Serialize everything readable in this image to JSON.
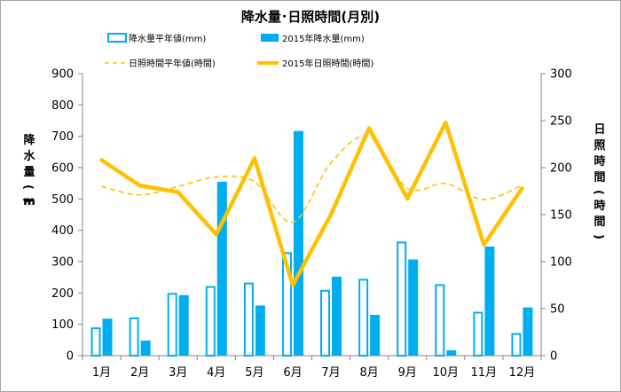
{
  "chart_data": {
    "type": "bar",
    "title": "降水量･日照時間(月別)",
    "categories": [
      "1月",
      "2月",
      "3月",
      "4月",
      "5月",
      "6月",
      "7月",
      "8月",
      "9月",
      "10月",
      "11月",
      "12月"
    ],
    "y_left": {
      "label": "降水量(mm)",
      "lim": [
        0,
        900
      ],
      "ticks": [
        0,
        100,
        200,
        300,
        400,
        500,
        600,
        700,
        800,
        900
      ]
    },
    "y_right": {
      "label": "日照時間(時間)",
      "lim": [
        0,
        300
      ],
      "ticks": [
        0,
        50,
        100,
        150,
        200,
        250,
        300
      ]
    },
    "series": [
      {
        "name": "降水量平年値(mm)",
        "kind": "bar-outline",
        "axis": "left",
        "color": "#00aeef",
        "values": [
          90,
          122,
          200,
          222,
          233,
          330,
          210,
          245,
          364,
          228,
          140,
          72
        ]
      },
      {
        "name": "2015年降水量(mm)",
        "kind": "bar",
        "axis": "left",
        "color": "#00aeef",
        "values": [
          118,
          48,
          193,
          555,
          160,
          717,
          252,
          130,
          307,
          17,
          348,
          154
        ]
      },
      {
        "name": "日照時間平年値(時間)",
        "kind": "dashed-line",
        "axis": "right",
        "color": "#ffc000",
        "values": [
          180,
          171,
          180,
          190,
          185,
          142,
          205,
          233,
          178,
          183,
          166,
          181
        ]
      },
      {
        "name": "2015年日照時間(時間)",
        "kind": "line",
        "axis": "right",
        "color": "#ffc000",
        "values": [
          208,
          181,
          174,
          129,
          210,
          75,
          150,
          242,
          167,
          248,
          118,
          178
        ]
      }
    ]
  }
}
